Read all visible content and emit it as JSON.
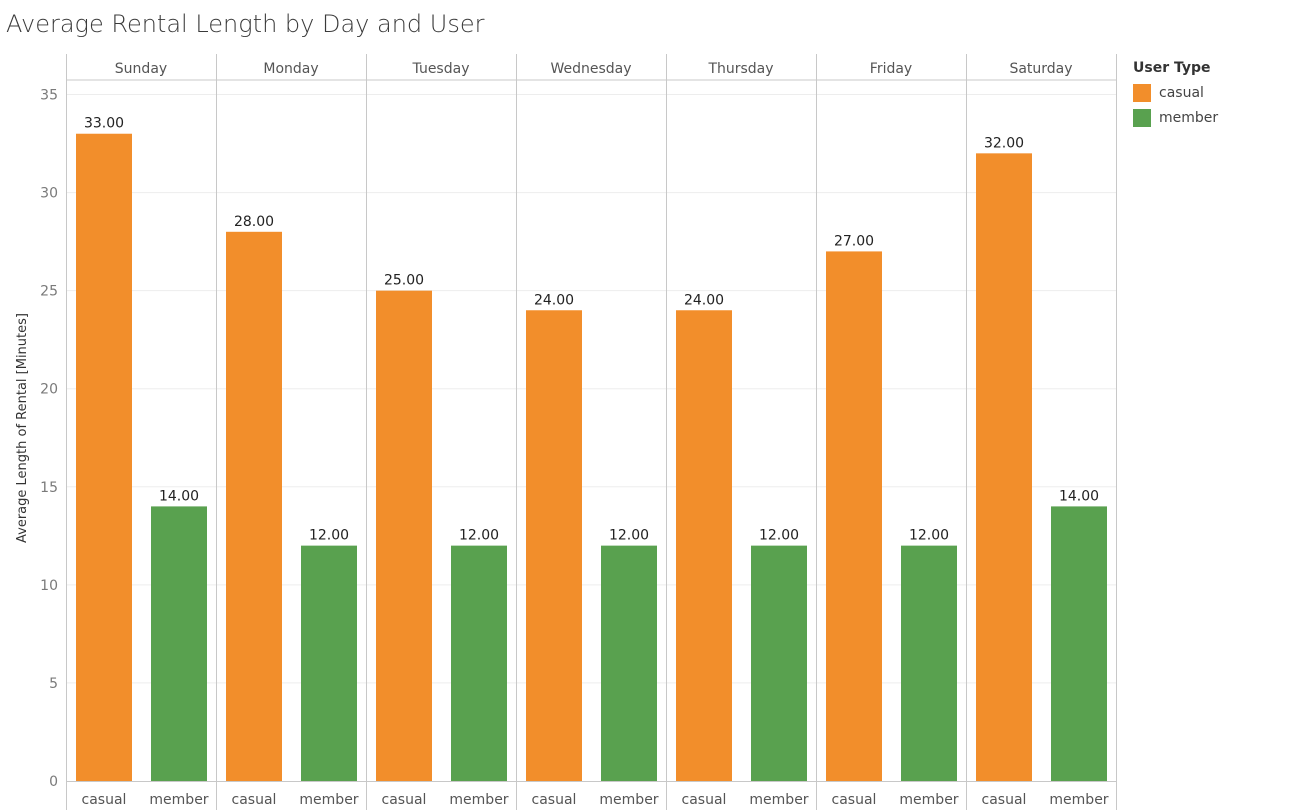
{
  "chart_data": {
    "type": "bar",
    "title": "Average Rental Length by Day and User",
    "ylabel": "Average Length of Rental [Minutes]",
    "xlabel": "",
    "ylim": [
      0,
      35
    ],
    "y_ticks": [
      "0",
      "5",
      "10",
      "15",
      "20",
      "25",
      "30",
      "35"
    ],
    "y_tick_values": [
      0,
      5,
      10,
      15,
      20,
      25,
      30,
      35
    ],
    "grid": true,
    "legend_position": "right",
    "legend_title": "User Type",
    "categories": [
      "Sunday",
      "Monday",
      "Tuesday",
      "Wednesday",
      "Thursday",
      "Friday",
      "Saturday"
    ],
    "sub_categories": [
      "casual",
      "member"
    ],
    "series": [
      {
        "name": "casual",
        "color": "#f28e2b",
        "values": [
          33,
          28,
          25,
          24,
          24,
          27,
          32
        ],
        "labels": [
          "33.00",
          "28.00",
          "25.00",
          "24.00",
          "24.00",
          "27.00",
          "32.00"
        ]
      },
      {
        "name": "member",
        "color": "#59a14f",
        "values": [
          14,
          12,
          12,
          12,
          12,
          12,
          14
        ],
        "labels": [
          "14.00",
          "12.00",
          "12.00",
          "12.00",
          "12.00",
          "12.00",
          "14.00"
        ]
      }
    ]
  }
}
